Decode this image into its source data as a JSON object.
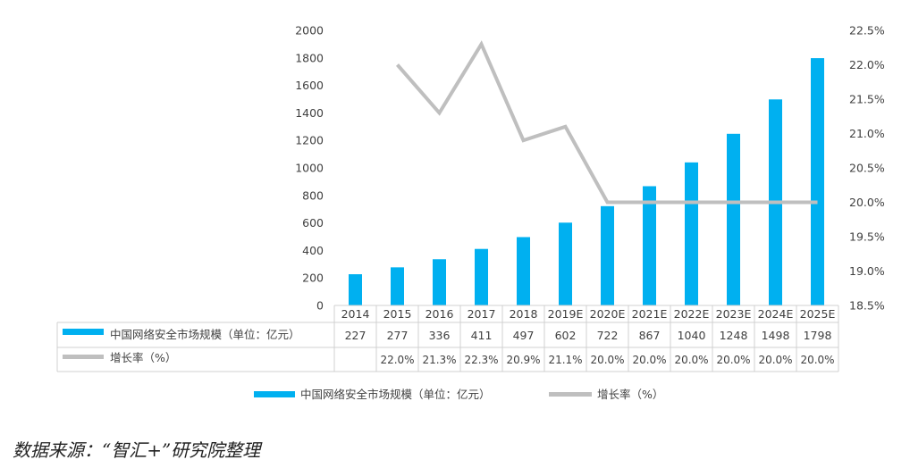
{
  "chart_data": {
    "type": "bar",
    "categories": [
      "2014",
      "2015",
      "2016",
      "2017",
      "2018",
      "2019E",
      "2020E",
      "2021E",
      "2022E",
      "2023E",
      "2024E",
      "2025E"
    ],
    "series": [
      {
        "name": "中国网络安全市场规模（单位：亿元）",
        "kind": "bar",
        "axis": "left",
        "values": [
          227,
          277,
          336,
          411,
          497,
          602,
          722,
          867,
          1040,
          1248,
          1498,
          1798
        ],
        "labels": [
          "227",
          "277",
          "336",
          "411",
          "497",
          "602",
          "722",
          "867",
          "1040",
          "1248",
          "1498",
          "1798"
        ],
        "color": "#00b0f0"
      },
      {
        "name": "增长率（%）",
        "kind": "line",
        "axis": "right",
        "values": [
          null,
          22.0,
          21.3,
          22.3,
          20.9,
          21.1,
          20.0,
          20.0,
          20.0,
          20.0,
          20.0,
          20.0
        ],
        "labels": [
          "",
          "22.0%",
          "21.3%",
          "22.3%",
          "20.9%",
          "21.1%",
          "20.0%",
          "20.0%",
          "20.0%",
          "20.0%",
          "20.0%",
          "20.0%"
        ],
        "color": "#bfbfbf"
      }
    ],
    "y_left": {
      "min": 0,
      "max": 2000,
      "step": 200,
      "ticks": [
        "0",
        "200",
        "400",
        "600",
        "800",
        "1000",
        "1200",
        "1400",
        "1600",
        "1800",
        "2000"
      ]
    },
    "y_right": {
      "min": 18.5,
      "max": 22.5,
      "step": 0.5,
      "ticks": [
        "18.5%",
        "19.0%",
        "19.5%",
        "20.0%",
        "20.5%",
        "21.0%",
        "21.5%",
        "22.0%",
        "22.5%"
      ]
    },
    "grid": false,
    "data_table": true,
    "legend_position": "bottom"
  },
  "source_note": "数据来源：“智汇+”研究院整理"
}
